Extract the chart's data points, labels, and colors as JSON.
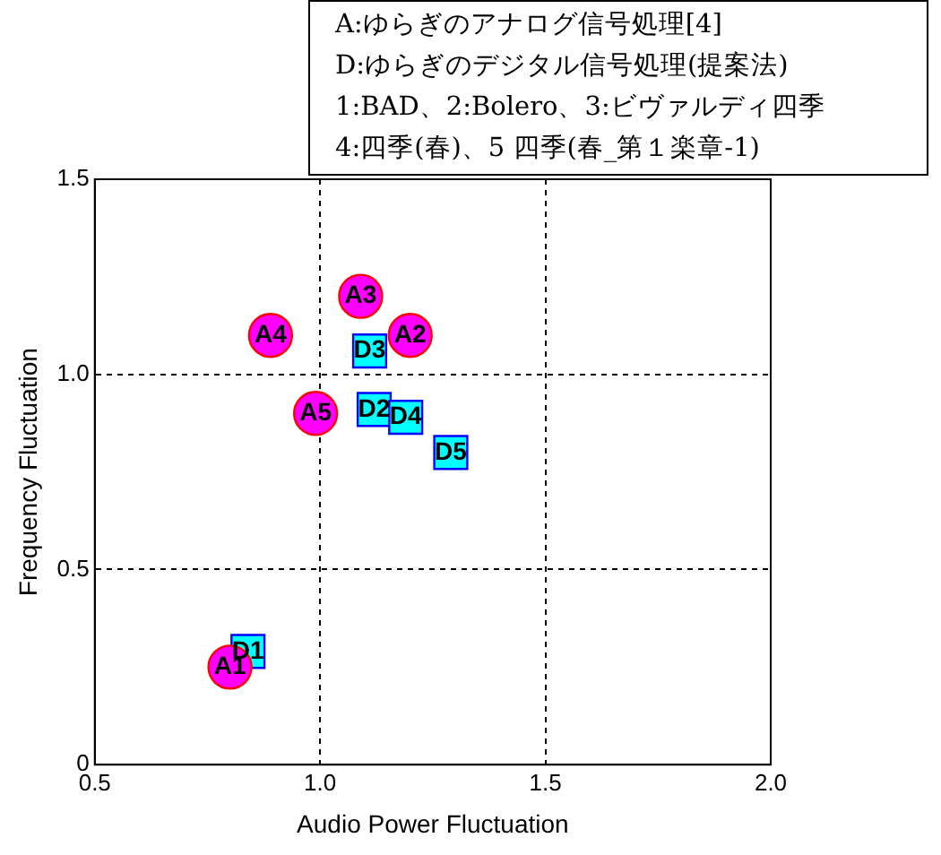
{
  "chart_data": {
    "type": "scatter",
    "xlabel": "Audio Power Fluctuation",
    "ylabel": "Frequency Fluctuation",
    "xlim": [
      0.5,
      2.0
    ],
    "xticks": [
      0.5,
      {
        "value": 1,
        "label": "1.0"
      },
      1.5,
      {
        "value": 2,
        "label": "2.0"
      }
    ],
    "ylim": [
      0,
      1.5
    ],
    "yticks": [
      0,
      0.5,
      {
        "value": 1,
        "label": "1.0"
      },
      1.5
    ],
    "grid": true,
    "legend": false,
    "series": [
      {
        "color": "#ff00ff",
        "marker": "circle",
        "x": [
          0.8,
          1.2,
          1.09,
          0.89,
          0.99
        ],
        "values": [
          0.25,
          1.1,
          1.2,
          1.1,
          0.9
        ]
      },
      {
        "color": "#00ffff",
        "marker": "square",
        "x": [
          0.84,
          1.12,
          1.11,
          1.19,
          1.29
        ],
        "values": [
          0.29,
          0.91,
          1.06,
          0.89,
          0.8
        ]
      }
    ],
    "annotations": [
      "A:ゆらぎのアナログ信号処理[4]",
      "D:ゆらぎのデジタル信号処理(提案法)",
      "1:BAD、2:Bolero、3:ビヴァルディ四季",
      "4:四季(春)、5 四季(春_第１楽章-1)",
      {
        "text": "A1",
        "x": 0.8,
        "y": 0.25
      },
      {
        "text": "A2",
        "x": 1.2,
        "y": 1.1
      },
      {
        "text": "A3",
        "x": 1.09,
        "y": 1.2
      },
      {
        "text": "A4",
        "x": 0.89,
        "y": 1.1
      },
      {
        "text": "A5",
        "x": 0.99,
        "y": 0.9
      },
      {
        "text": "D1",
        "x": 0.84,
        "y": 0.29
      },
      {
        "text": "D2",
        "x": 1.12,
        "y": 0.91
      },
      {
        "text": "D3",
        "x": 1.11,
        "y": 1.06
      },
      {
        "text": "D4",
        "x": 1.19,
        "y": 0.89
      },
      {
        "text": "D5",
        "x": 1.29,
        "y": 0.8
      }
    ]
  }
}
